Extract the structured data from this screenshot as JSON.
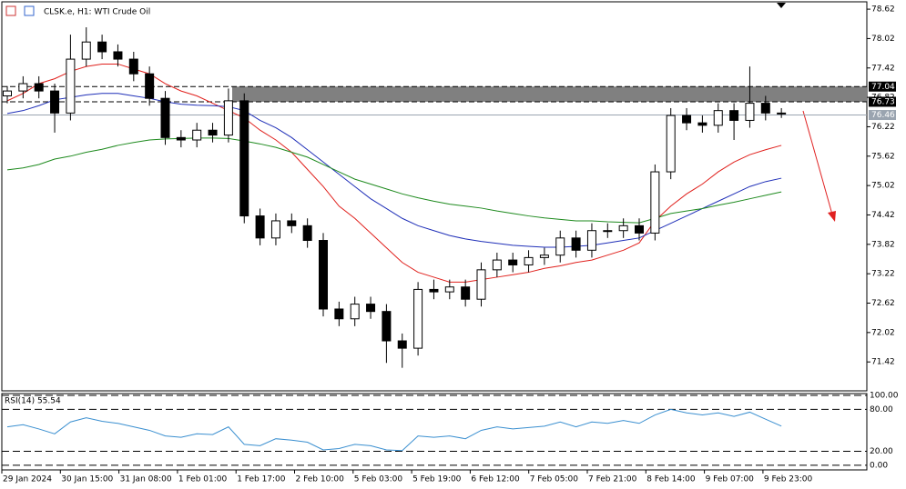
{
  "chart_data": [
    {
      "type": "candlestick",
      "title": "CLSK.e, H1:  WTI Crude Oil",
      "open": [
        76.85,
        76.95,
        77.1,
        76.95,
        76.5,
        77.6,
        77.95,
        77.75,
        77.6,
        77.3,
        76.8,
        76.0,
        75.95,
        76.15,
        76.05,
        76.75,
        74.4,
        73.95,
        74.3,
        74.2,
        73.9,
        72.5,
        72.3,
        72.6,
        72.45,
        71.85,
        71.7,
        72.9,
        72.85,
        72.95,
        72.7,
        73.3,
        73.5,
        73.4,
        73.55,
        73.6,
        73.95,
        73.7,
        74.1,
        74.1,
        74.2,
        74.05,
        75.3,
        76.45,
        76.3,
        76.25,
        76.55,
        76.35,
        76.7,
        76.5
      ],
      "high": [
        77.05,
        77.25,
        77.25,
        77.1,
        78.1,
        78.25,
        78.1,
        77.9,
        77.75,
        77.45,
        76.95,
        76.15,
        76.3,
        76.3,
        77.0,
        76.9,
        74.55,
        74.45,
        74.45,
        74.35,
        74.05,
        72.65,
        72.75,
        72.75,
        72.6,
        72.0,
        73.05,
        73.1,
        73.1,
        73.1,
        73.45,
        73.65,
        73.65,
        73.7,
        73.75,
        74.1,
        74.1,
        74.25,
        74.25,
        74.35,
        74.35,
        75.45,
        76.6,
        76.6,
        76.45,
        76.7,
        76.7,
        77.45,
        76.85,
        76.6
      ],
      "low": [
        76.7,
        76.8,
        76.8,
        76.1,
        76.35,
        77.45,
        77.6,
        77.45,
        77.15,
        76.65,
        75.85,
        75.8,
        75.8,
        75.9,
        75.9,
        74.25,
        73.8,
        73.8,
        74.05,
        73.75,
        72.35,
        72.15,
        72.15,
        72.3,
        71.4,
        71.3,
        71.55,
        72.7,
        72.7,
        72.55,
        72.55,
        73.15,
        73.25,
        73.25,
        73.4,
        73.45,
        73.55,
        73.55,
        73.95,
        73.95,
        73.9,
        73.9,
        75.15,
        76.15,
        76.1,
        76.1,
        75.95,
        76.2,
        76.35,
        76.4
      ],
      "close": [
        76.95,
        77.1,
        76.95,
        76.5,
        77.6,
        77.95,
        77.75,
        77.6,
        77.3,
        76.8,
        76.0,
        75.95,
        76.15,
        76.05,
        76.75,
        74.4,
        73.95,
        74.3,
        74.2,
        73.9,
        72.5,
        72.3,
        72.6,
        72.45,
        71.85,
        71.7,
        72.9,
        72.85,
        72.95,
        72.7,
        73.3,
        73.5,
        73.4,
        73.55,
        73.6,
        73.95,
        73.7,
        74.1,
        74.1,
        74.2,
        74.05,
        75.3,
        76.45,
        76.3,
        76.25,
        76.55,
        76.35,
        76.7,
        76.5,
        76.5
      ],
      "up_color": "#ffffff",
      "down_color": "#000000",
      "wick_color": "#000000",
      "moving_averages": [
        {
          "color": "#e0201c",
          "values": [
            76.75,
            76.9,
            77.1,
            77.2,
            77.35,
            77.45,
            77.5,
            77.5,
            77.4,
            77.3,
            77.1,
            76.95,
            76.85,
            76.7,
            76.55,
            76.4,
            76.15,
            75.95,
            75.7,
            75.35,
            75.0,
            74.6,
            74.35,
            74.05,
            73.75,
            73.45,
            73.25,
            73.15,
            73.05,
            73.05,
            73.1,
            73.15,
            73.2,
            73.25,
            73.33,
            73.38,
            73.45,
            73.5,
            73.6,
            73.7,
            73.85,
            74.3,
            74.6,
            74.85,
            75.05,
            75.3,
            75.5,
            75.65,
            75.75,
            75.84
          ]
        },
        {
          "color": "#1f2fb8",
          "values": [
            76.49,
            76.55,
            76.65,
            76.77,
            76.82,
            76.87,
            76.9,
            76.9,
            76.85,
            76.8,
            76.73,
            76.68,
            76.66,
            76.65,
            76.63,
            76.55,
            76.35,
            76.2,
            76.0,
            75.75,
            75.5,
            75.25,
            75.0,
            74.75,
            74.55,
            74.35,
            74.2,
            74.1,
            74.0,
            73.93,
            73.88,
            73.84,
            73.8,
            73.78,
            73.76,
            73.76,
            73.78,
            73.8,
            73.85,
            73.9,
            73.95,
            74.1,
            74.25,
            74.4,
            74.55,
            74.7,
            74.85,
            75.0,
            75.1,
            75.17
          ]
        },
        {
          "color": "#1e8a1e",
          "values": [
            75.34,
            75.38,
            75.45,
            75.56,
            75.62,
            75.7,
            75.76,
            75.84,
            75.9,
            75.95,
            75.97,
            75.98,
            75.99,
            75.99,
            75.98,
            75.93,
            75.87,
            75.8,
            75.7,
            75.6,
            75.45,
            75.3,
            75.15,
            75.05,
            74.95,
            74.85,
            74.77,
            74.7,
            74.64,
            74.6,
            74.56,
            74.5,
            74.45,
            74.4,
            74.36,
            74.33,
            74.3,
            74.3,
            74.28,
            74.27,
            74.26,
            74.35,
            74.45,
            74.5,
            74.55,
            74.62,
            74.68,
            74.75,
            74.82,
            74.89
          ]
        }
      ],
      "levels": [
        77.04,
        76.73
      ],
      "zone_color": "#808080",
      "current_price": 76.46,
      "ylim": [
        70.83,
        78.77
      ],
      "yticks": [
        78.62,
        78.02,
        77.42,
        76.82,
        76.22,
        75.62,
        75.02,
        74.42,
        73.82,
        73.22,
        72.62,
        72.02,
        71.42
      ],
      "x_labels": [
        "29 Jan 2024",
        "30 Jan 15:00",
        "31 Jan 08:00",
        "1 Feb 01:00",
        "1 Feb 17:00",
        "2 Feb 10:00",
        "5 Feb 03:00",
        "5 Feb 19:00",
        "6 Feb 12:00",
        "7 Feb 05:00",
        "7 Feb 21:00",
        "8 Feb 14:00",
        "9 Feb 07:00",
        "9 Feb 23:00"
      ]
    },
    {
      "type": "line",
      "title": "RSI(14) 55.54",
      "color": "#3a8fd0",
      "values": [
        55,
        58,
        52,
        45,
        62,
        68,
        63,
        60,
        55,
        50,
        42,
        40,
        45,
        44,
        55,
        30,
        28,
        38,
        36,
        33,
        22,
        24,
        30,
        28,
        22,
        21,
        42,
        40,
        42,
        38,
        50,
        55,
        52,
        54,
        56,
        62,
        55,
        62,
        60,
        64,
        60,
        72,
        80,
        75,
        72,
        75,
        70,
        76,
        66,
        56
      ],
      "ylim": [
        -6.6,
        102.6
      ],
      "yticks": [
        {
          "value": 100,
          "label": "100.00"
        },
        {
          "value": 80,
          "label": "80.00"
        },
        {
          "value": 20,
          "label": "20.00"
        },
        {
          "value": 0,
          "label": "0.00"
        }
      ]
    }
  ]
}
